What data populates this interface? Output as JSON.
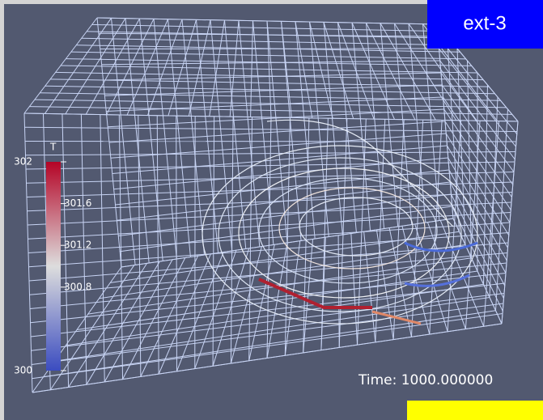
{
  "badge": "ext-3",
  "time_label": "Time: 1000.000000",
  "colorbar": {
    "title": "T",
    "range": [
      300,
      302
    ],
    "ticks": [
      {
        "value": 302,
        "label": "302"
      },
      {
        "value": 301.6,
        "label": "301.6"
      },
      {
        "value": 301.2,
        "label": "301.2"
      },
      {
        "value": 300.8,
        "label": "300.8"
      },
      {
        "value": 300,
        "label": "300"
      }
    ]
  }
}
